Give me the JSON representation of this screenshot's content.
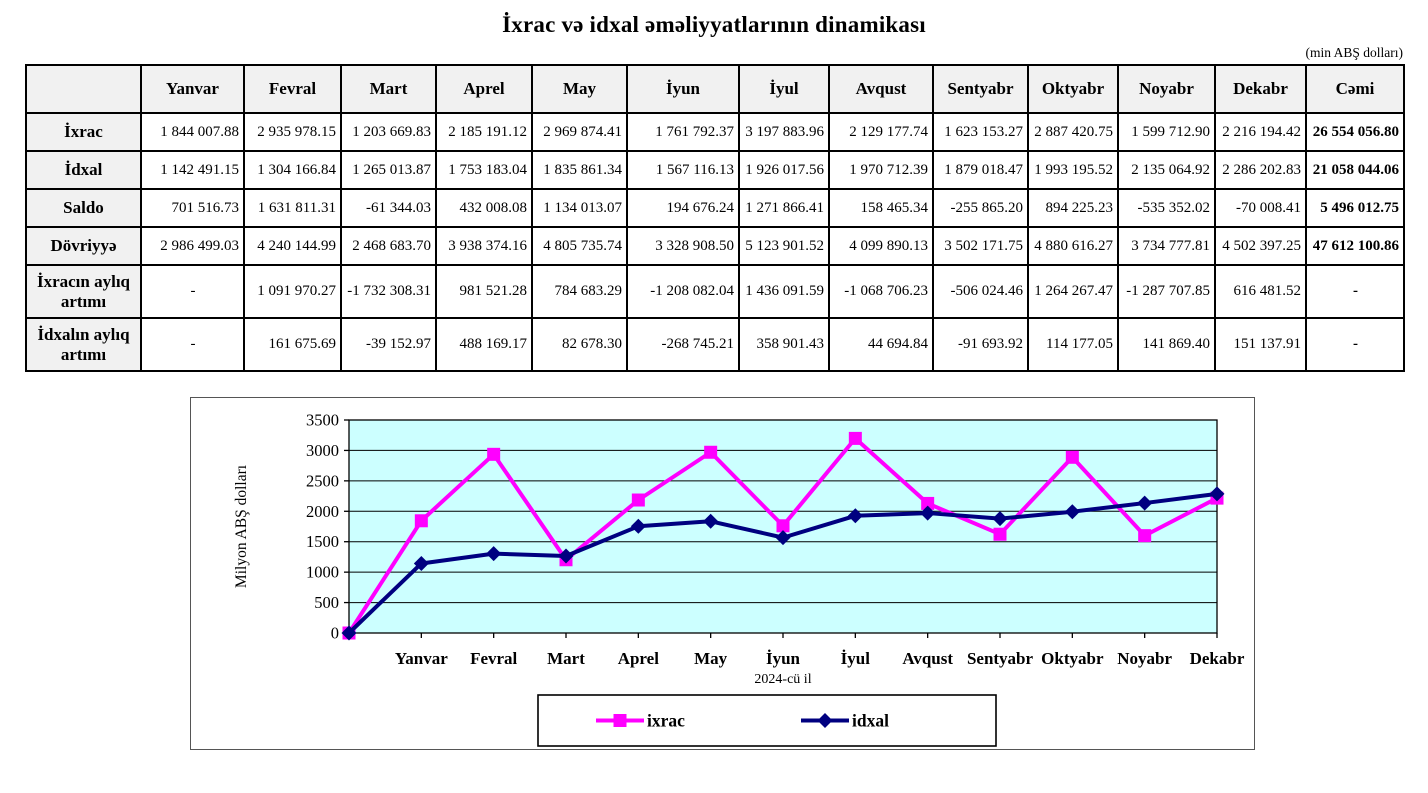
{
  "page": {
    "title": "İxrac və idxal əməliyyatlarının dinamikası",
    "unit_note": "(min ABŞ dolları)"
  },
  "table": {
    "columns": [
      "",
      "Yanvar",
      "Fevral",
      "Mart",
      "Aprel",
      "May",
      "İyun",
      "İyul",
      "Avqust",
      "Sentyabr",
      "Oktyabr",
      "Noyabr",
      "Dekabr",
      "Cəmi"
    ],
    "rows": [
      {
        "label": "İxrac",
        "values": [
          "1 844 007.88",
          "2 935 978.15",
          "1 203 669.83",
          "2 185 191.12",
          "2 969 874.41",
          "1 761 792.37",
          "3 197 883.96",
          "2 129 177.74",
          "1 623 153.27",
          "2 887 420.75",
          "1 599 712.90",
          "2 216 194.42"
        ],
        "total": "26 554 056.80"
      },
      {
        "label": "İdxal",
        "values": [
          "1 142 491.15",
          "1 304 166.84",
          "1 265 013.87",
          "1 753 183.04",
          "1 835 861.34",
          "1 567 116.13",
          "1 926 017.56",
          "1 970 712.39",
          "1 879 018.47",
          "1 993 195.52",
          "2 135 064.92",
          "2 286 202.83"
        ],
        "total": "21 058 044.06"
      },
      {
        "label": "Saldo",
        "values": [
          "701 516.73",
          "1 631 811.31",
          "-61 344.03",
          "432 008.08",
          "1 134 013.07",
          "194 676.24",
          "1 271 866.41",
          "158 465.34",
          "-255 865.20",
          "894 225.23",
          "-535 352.02",
          "-70 008.41"
        ],
        "total": "5 496 012.75"
      },
      {
        "label": "Dövriyyə",
        "values": [
          "2 986 499.03",
          "4 240 144.99",
          "2 468 683.70",
          "3 938 374.16",
          "4 805 735.74",
          "3 328 908.50",
          "5 123 901.52",
          "4 099 890.13",
          "3 502 171.75",
          "4 880 616.27",
          "3 734 777.81",
          "4 502 397.25"
        ],
        "total": "47 612 100.86"
      },
      {
        "label": "İxracın aylıq artımı",
        "values": [
          "-",
          "1 091 970.27",
          "-1 732 308.31",
          "981 521.28",
          "784 683.29",
          "-1 208 082.04",
          "1 436 091.59",
          "-1 068 706.23",
          "-506 024.46",
          "1 264 267.47",
          "-1 287 707.85",
          "616 481.52"
        ],
        "total": "-"
      },
      {
        "label": "İdxalın aylıq artımı",
        "values": [
          "-",
          "161 675.69",
          "-39 152.97",
          "488 169.17",
          "82 678.30",
          "-268 745.21",
          "358 901.43",
          "44 694.84",
          "-91 693.92",
          "114 177.05",
          "141 869.40",
          "151 137.91"
        ],
        "total": "-"
      }
    ]
  },
  "chart_data": {
    "type": "line",
    "title": "",
    "categories": [
      "Yanvar",
      "Fevral",
      "Mart",
      "Aprel",
      "May",
      "İyun",
      "İyul",
      "Avqust",
      "Sentyabr",
      "Oktyabr",
      "Noyabr",
      "Dekabr"
    ],
    "series": [
      {
        "name": "ixrac",
        "color": "#FF00FF",
        "marker": "square",
        "values": [
          1844.01,
          2935.98,
          1203.67,
          2185.19,
          2969.87,
          1761.79,
          3197.88,
          2129.18,
          1623.15,
          2887.42,
          1599.71,
          2216.19
        ]
      },
      {
        "name": "idxal",
        "color": "#000080",
        "marker": "diamond",
        "values": [
          1142.49,
          1304.17,
          1265.01,
          1753.18,
          1835.86,
          1567.12,
          1926.02,
          1970.71,
          1879.02,
          1993.2,
          2135.06,
          2286.2
        ]
      }
    ],
    "starts_at_zero": true,
    "xlabel": "2024-cü il",
    "ylabel": "Milyon ABŞ dolları",
    "ylim": [
      0,
      3500
    ],
    "yticks": [
      0,
      500,
      1000,
      1500,
      2000,
      2500,
      3000,
      3500
    ],
    "grid": true,
    "plot_bg": "#CCFFFF",
    "legend": [
      "ixrac",
      "idxal"
    ],
    "legend_position": "bottom"
  }
}
